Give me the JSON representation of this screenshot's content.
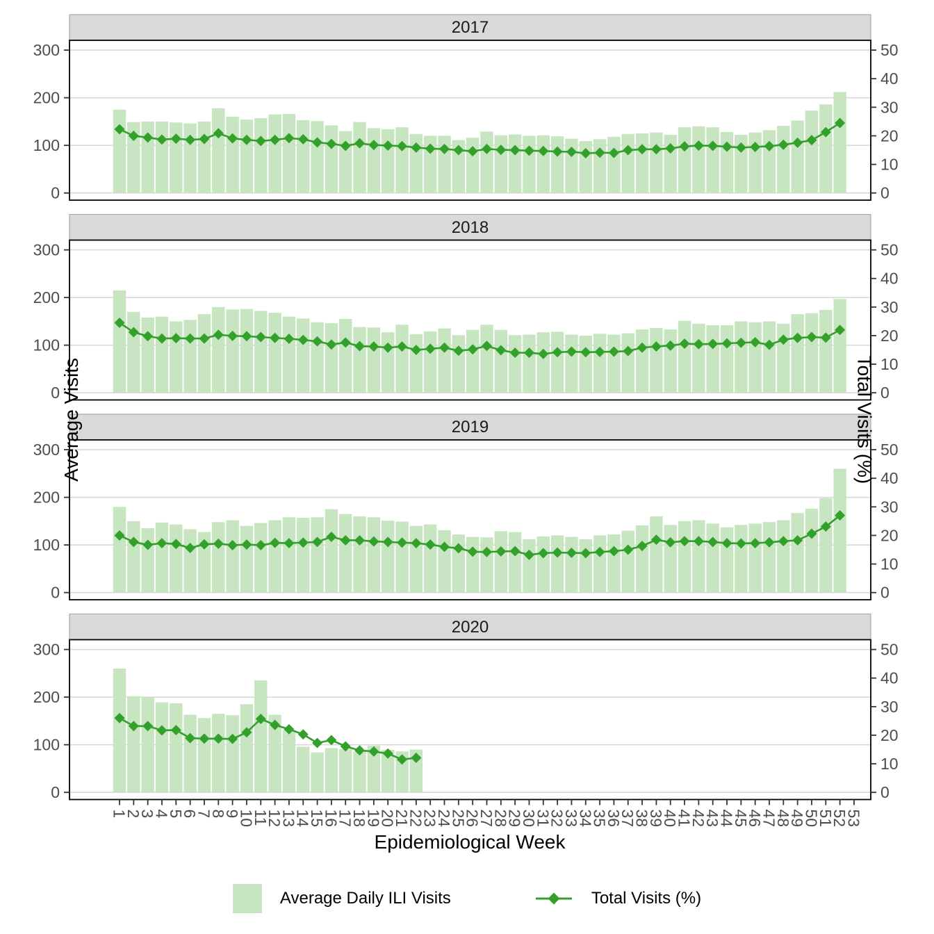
{
  "figure": {
    "x_axis_title": "Epidemiological Week",
    "y_axis_left_title": "Average Visits",
    "y_axis_right_title": "Total Visits (%)",
    "facet_titles": [
      "2017",
      "2018",
      "2019",
      "2020"
    ],
    "left_ticks": [
      0,
      100,
      200,
      300
    ],
    "right_ticks": [
      0,
      10,
      20,
      30,
      40,
      50
    ],
    "x_ticks": [
      1,
      2,
      3,
      4,
      5,
      6,
      7,
      8,
      9,
      10,
      11,
      12,
      13,
      14,
      15,
      16,
      17,
      18,
      19,
      20,
      21,
      22,
      23,
      24,
      25,
      26,
      27,
      28,
      29,
      30,
      31,
      32,
      33,
      34,
      35,
      36,
      37,
      38,
      39,
      40,
      41,
      42,
      43,
      44,
      45,
      46,
      47,
      48,
      49,
      50,
      51,
      52,
      53
    ],
    "legend": [
      {
        "type": "bar",
        "label": "Average Daily ILI Visits"
      },
      {
        "type": "line",
        "label": "Total Visits (%)"
      }
    ],
    "colors": {
      "bar_fill": "#c7e5c0",
      "line": "#33a02c",
      "strip_bg": "#d9d9d9",
      "gridline": "#d9d9d9",
      "panel_border": "#000000",
      "axis_text": "#4d4d4d",
      "tick_mark": "#333333"
    }
  },
  "chart_data": [
    {
      "facet": "2017",
      "type": "bar+line",
      "xlabel": "Epidemiological Week",
      "ylabel_left": "Average Visits",
      "ylabel_right": "Total Visits (%)",
      "ylim_left": [
        0,
        300
      ],
      "ylim_right": [
        0,
        50
      ],
      "weeks": [
        1,
        2,
        3,
        4,
        5,
        6,
        7,
        8,
        9,
        10,
        11,
        12,
        13,
        14,
        15,
        16,
        17,
        18,
        19,
        20,
        21,
        22,
        23,
        24,
        25,
        26,
        27,
        28,
        29,
        30,
        31,
        32,
        33,
        34,
        35,
        36,
        37,
        38,
        39,
        40,
        41,
        42,
        43,
        44,
        45,
        46,
        47,
        48,
        49,
        50,
        51,
        52
      ],
      "avg_daily_ili_visits": [
        175,
        149,
        150,
        150,
        148,
        146,
        150,
        178,
        160,
        154,
        157,
        165,
        166,
        153,
        151,
        142,
        130,
        149,
        136,
        134,
        138,
        124,
        120,
        120,
        111,
        116,
        129,
        121,
        123,
        120,
        121,
        119,
        114,
        109,
        113,
        118,
        124,
        125,
        127,
        122,
        138,
        140,
        138,
        128,
        122,
        127,
        132,
        141,
        152,
        173,
        186,
        212
      ],
      "total_visits_pct": [
        22.3,
        20.0,
        19.4,
        18.7,
        19.0,
        18.6,
        18.9,
        20.9,
        19.1,
        18.6,
        18.2,
        18.6,
        19.2,
        18.8,
        17.7,
        17.2,
        16.5,
        17.4,
        16.8,
        16.6,
        16.4,
        15.9,
        15.5,
        15.4,
        15.0,
        14.6,
        15.4,
        15.1,
        15.0,
        14.8,
        14.7,
        14.5,
        14.4,
        13.9,
        14.1,
        14.0,
        15.0,
        15.3,
        15.3,
        15.6,
        16.3,
        16.6,
        16.5,
        16.2,
        15.9,
        16.1,
        16.4,
        16.9,
        17.6,
        18.5,
        21.3,
        24.5
      ]
    },
    {
      "facet": "2018",
      "type": "bar+line",
      "xlabel": "Epidemiological Week",
      "ylabel_left": "Average Visits",
      "ylabel_right": "Total Visits (%)",
      "ylim_left": [
        0,
        300
      ],
      "ylim_right": [
        0,
        50
      ],
      "weeks": [
        1,
        2,
        3,
        4,
        5,
        6,
        7,
        8,
        9,
        10,
        11,
        12,
        13,
        14,
        15,
        16,
        17,
        18,
        19,
        20,
        21,
        22,
        23,
        24,
        25,
        26,
        27,
        28,
        29,
        30,
        31,
        32,
        33,
        34,
        35,
        36,
        37,
        38,
        39,
        40,
        41,
        42,
        43,
        44,
        45,
        46,
        47,
        48,
        49,
        50,
        51,
        52
      ],
      "avg_daily_ili_visits": [
        215,
        170,
        158,
        160,
        150,
        153,
        165,
        180,
        175,
        176,
        172,
        168,
        160,
        156,
        148,
        146,
        155,
        138,
        137,
        127,
        143,
        123,
        129,
        135,
        121,
        132,
        143,
        132,
        121,
        122,
        127,
        128,
        122,
        120,
        124,
        122,
        125,
        133,
        136,
        133,
        151,
        145,
        142,
        142,
        150,
        148,
        150,
        145,
        165,
        167,
        174,
        197
      ],
      "total_visits_pct": [
        24.5,
        21.2,
        19.8,
        19.0,
        19.1,
        19.0,
        19.0,
        20.3,
        19.9,
        19.8,
        19.5,
        19.2,
        18.9,
        18.5,
        18.0,
        16.9,
        17.6,
        16.3,
        16.2,
        15.8,
        16.2,
        15.0,
        15.4,
        15.8,
        14.7,
        15.2,
        16.4,
        14.9,
        14.0,
        14.0,
        13.6,
        14.2,
        14.4,
        14.2,
        14.3,
        14.4,
        14.6,
        15.8,
        16.2,
        16.5,
        17.2,
        17.0,
        17.1,
        17.3,
        17.5,
        17.7,
        16.8,
        18.6,
        19.2,
        19.5,
        19.3,
        22.0
      ]
    },
    {
      "facet": "2019",
      "type": "bar+line",
      "xlabel": "Epidemiological Week",
      "ylabel_left": "Average Visits",
      "ylabel_right": "Total Visits (%)",
      "ylim_left": [
        0,
        300
      ],
      "ylim_right": [
        0,
        50
      ],
      "weeks": [
        1,
        2,
        3,
        4,
        5,
        6,
        7,
        8,
        9,
        10,
        11,
        12,
        13,
        14,
        15,
        16,
        17,
        18,
        19,
        20,
        21,
        22,
        23,
        24,
        25,
        26,
        27,
        28,
        29,
        30,
        31,
        32,
        33,
        34,
        35,
        36,
        37,
        38,
        39,
        40,
        41,
        42,
        43,
        44,
        45,
        46,
        47,
        48,
        49,
        50,
        51,
        52
      ],
      "avg_daily_ili_visits": [
        180,
        150,
        135,
        147,
        143,
        133,
        127,
        148,
        152,
        140,
        146,
        152,
        158,
        157,
        158,
        175,
        165,
        160,
        158,
        151,
        149,
        140,
        143,
        131,
        122,
        117,
        116,
        129,
        127,
        112,
        118,
        120,
        117,
        112,
        120,
        122,
        130,
        141,
        160,
        142,
        150,
        152,
        145,
        137,
        142,
        145,
        148,
        152,
        167,
        176,
        198,
        260
      ],
      "total_visits_pct": [
        20.0,
        17.7,
        16.7,
        17.3,
        17.0,
        15.6,
        16.9,
        17.1,
        16.6,
        16.8,
        16.6,
        17.4,
        17.3,
        17.5,
        17.7,
        19.5,
        18.3,
        18.3,
        17.9,
        17.7,
        17.5,
        17.3,
        16.8,
        16.0,
        15.5,
        14.3,
        14.2,
        14.4,
        14.5,
        13.2,
        13.8,
        14.0,
        13.9,
        13.8,
        14.2,
        14.5,
        15.0,
        16.3,
        18.5,
        17.6,
        18.0,
        18.0,
        17.7,
        17.3,
        17.2,
        17.3,
        17.6,
        18.0,
        18.3,
        20.6,
        23.1,
        27.0
      ]
    },
    {
      "facet": "2020",
      "type": "bar+line",
      "xlabel": "Epidemiological Week",
      "ylabel_left": "Average Visits",
      "ylabel_right": "Total Visits (%)",
      "ylim_left": [
        0,
        300
      ],
      "ylim_right": [
        0,
        50
      ],
      "weeks": [
        1,
        2,
        3,
        4,
        5,
        6,
        7,
        8,
        9,
        10,
        11,
        12,
        13,
        14,
        15,
        16,
        17,
        18,
        19,
        20,
        21,
        22
      ],
      "avg_daily_ili_visits": [
        260,
        202,
        201,
        189,
        187,
        163,
        156,
        165,
        162,
        185,
        235,
        163,
        131,
        96,
        84,
        93,
        91,
        86,
        98,
        89,
        86,
        90
      ],
      "total_visits_pct": [
        26.0,
        23.2,
        23.2,
        21.7,
        21.8,
        19.0,
        18.8,
        18.8,
        18.7,
        21.0,
        25.7,
        23.6,
        22.1,
        20.3,
        17.3,
        18.3,
        16.1,
        14.7,
        14.3,
        13.6,
        11.5,
        12.1
      ]
    }
  ]
}
